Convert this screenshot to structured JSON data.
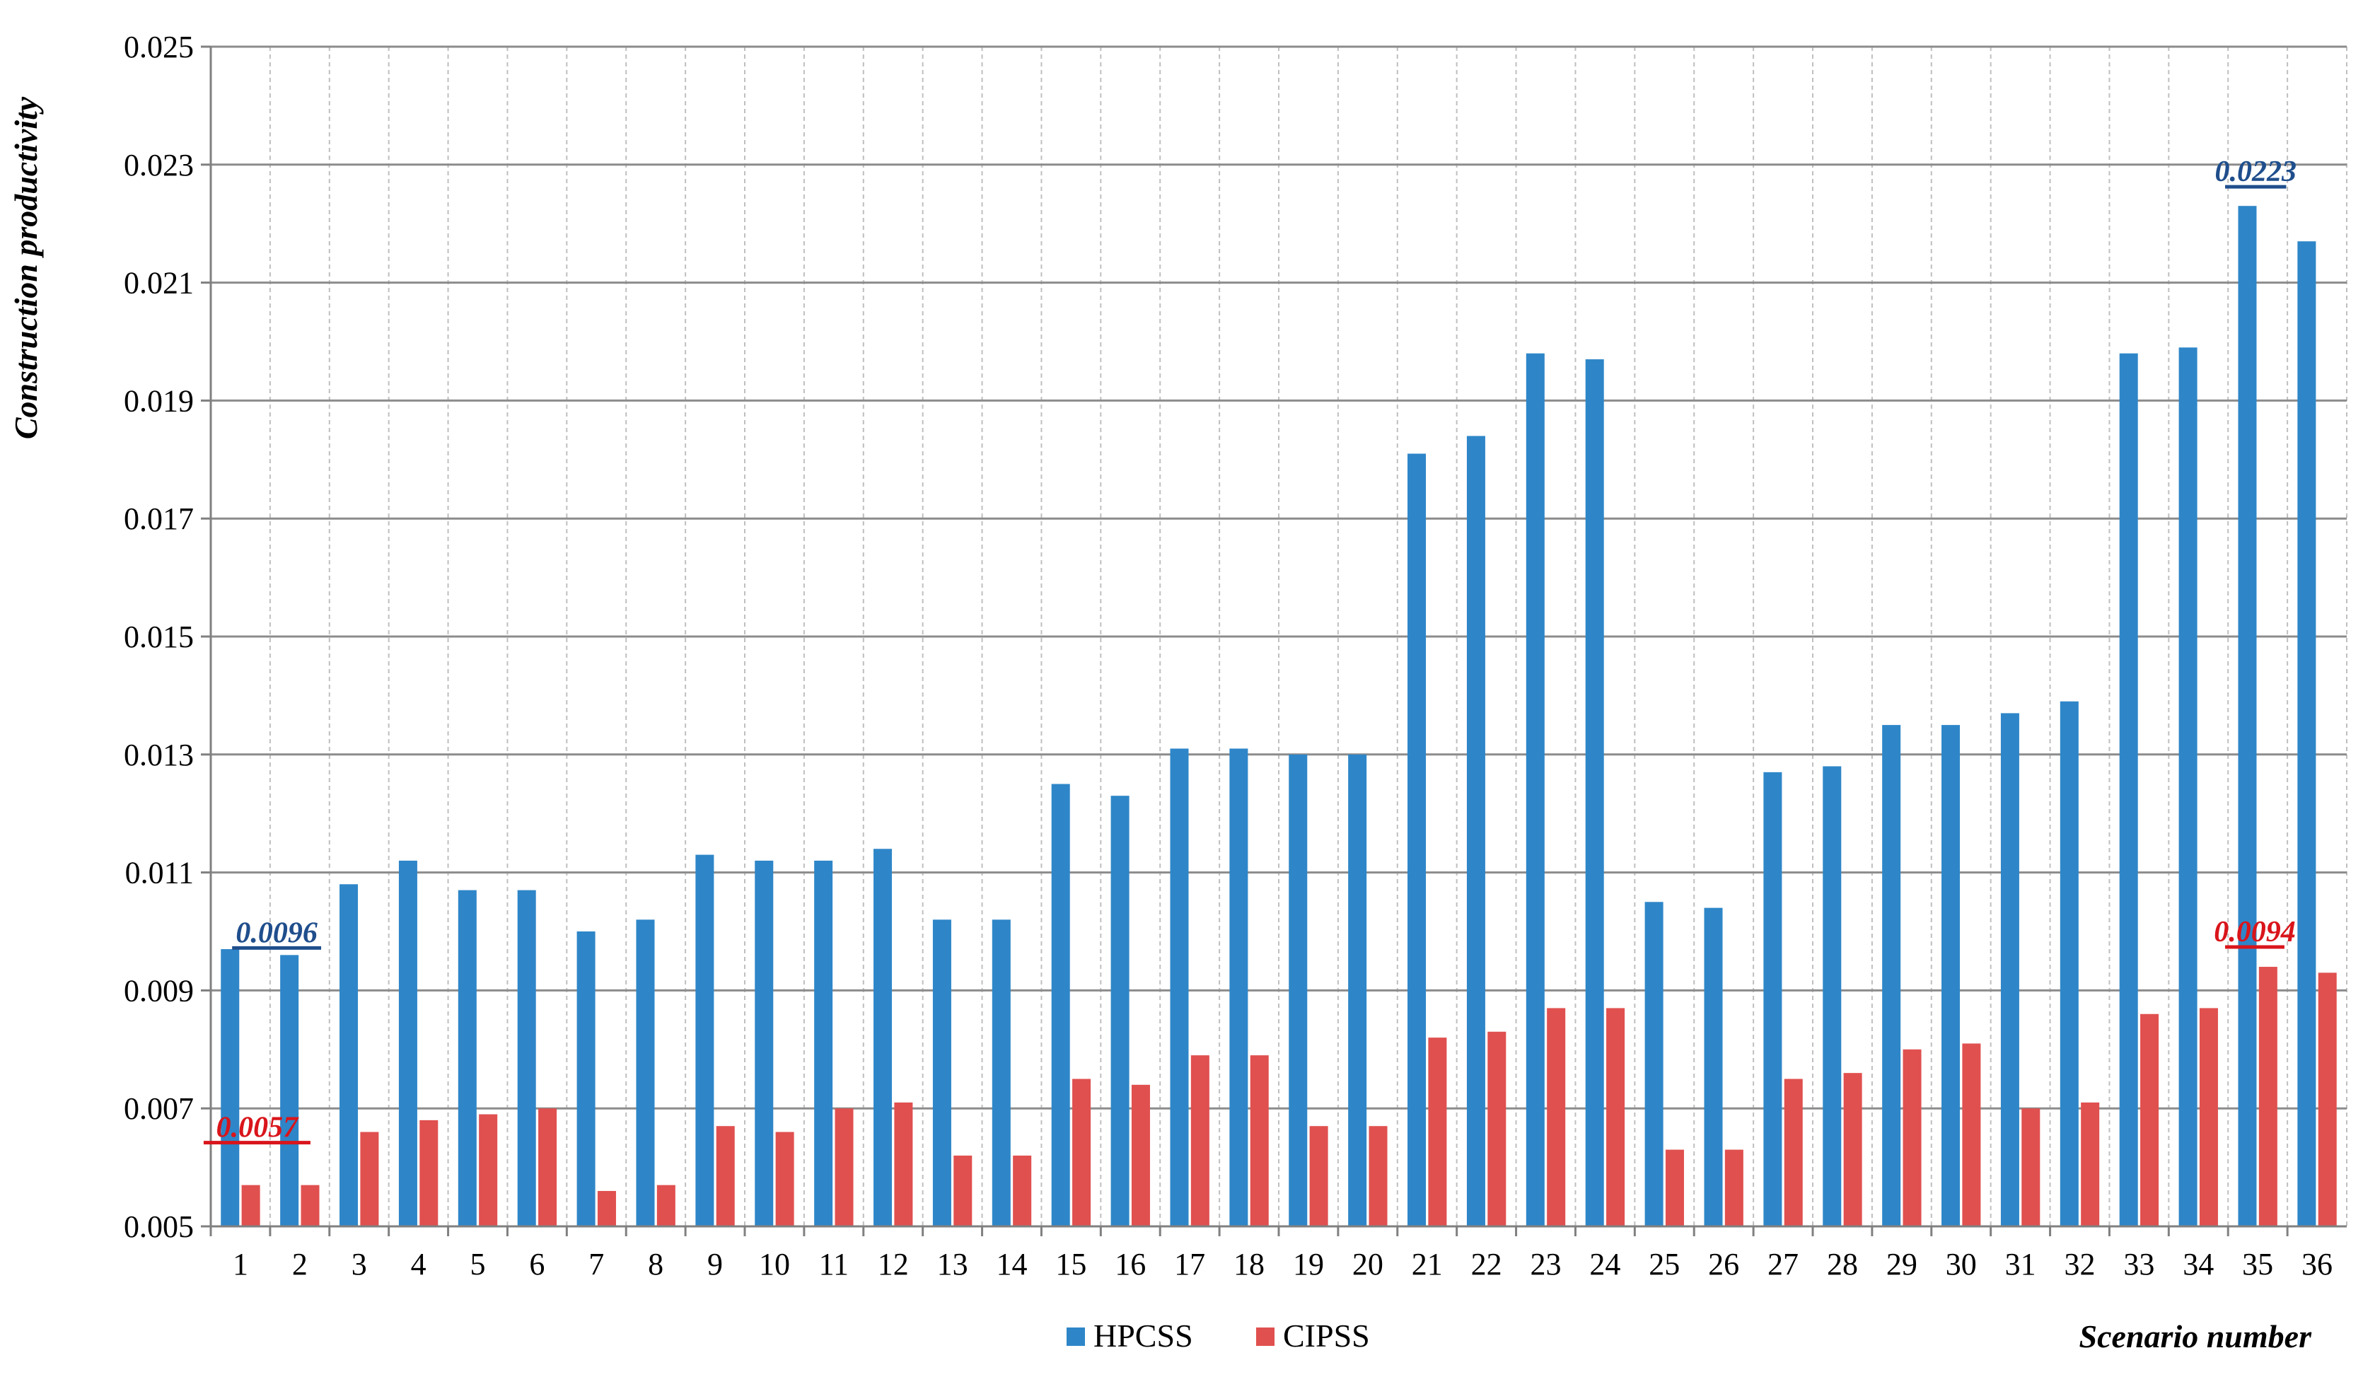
{
  "chart_data": {
    "type": "bar",
    "title": "",
    "xlabel": "Scenario number",
    "ylabel": "Construction productivity",
    "ylim": [
      0.005,
      0.025
    ],
    "yticks": [
      "0.005",
      "0.007",
      "0.009",
      "0.011",
      "0.013",
      "0.015",
      "0.017",
      "0.019",
      "0.021",
      "0.023",
      "0.025"
    ],
    "categories": [
      "1",
      "2",
      "3",
      "4",
      "5",
      "6",
      "7",
      "8",
      "9",
      "10",
      "11",
      "12",
      "13",
      "14",
      "15",
      "16",
      "17",
      "18",
      "19",
      "20",
      "21",
      "22",
      "23",
      "24",
      "25",
      "26",
      "27",
      "28",
      "29",
      "30",
      "31",
      "32",
      "33",
      "34",
      "35",
      "36"
    ],
    "series": [
      {
        "name": "HPCSS",
        "color": "#2E86C8",
        "values": [
          0.0097,
          0.0096,
          0.0108,
          0.0112,
          0.0107,
          0.0107,
          0.01,
          0.0102,
          0.0113,
          0.0112,
          0.0112,
          0.0114,
          0.0102,
          0.0102,
          0.0125,
          0.0123,
          0.0131,
          0.0131,
          0.013,
          0.013,
          0.0181,
          0.0184,
          0.0198,
          0.0197,
          0.0105,
          0.0104,
          0.0127,
          0.0128,
          0.0135,
          0.0135,
          0.0137,
          0.0139,
          0.0198,
          0.0199,
          0.0223,
          0.0217
        ]
      },
      {
        "name": "CIPSS",
        "color": "#E0504F",
        "values": [
          0.0057,
          0.0057,
          0.0066,
          0.0068,
          0.0069,
          0.007,
          0.0056,
          0.0057,
          0.0067,
          0.0066,
          0.007,
          0.0071,
          0.0062,
          0.0062,
          0.0075,
          0.0074,
          0.0079,
          0.0079,
          0.0067,
          0.0067,
          0.0082,
          0.0083,
          0.0087,
          0.0087,
          0.0063,
          0.0063,
          0.0075,
          0.0076,
          0.008,
          0.0081,
          0.007,
          0.0071,
          0.0086,
          0.0087,
          0.0094,
          0.0093
        ]
      }
    ],
    "annotations": [
      {
        "text": "0.0096",
        "series": "HPCSS",
        "categories": [
          "1",
          "2"
        ],
        "value": 0.0096,
        "color": "#1F4E8C"
      },
      {
        "text": "0.0057",
        "series": "CIPSS",
        "categories": [
          "1",
          "2"
        ],
        "value": 0.0057,
        "color": "#D9151B"
      },
      {
        "text": "0.0223",
        "series": "HPCSS",
        "categories": [
          "35"
        ],
        "value": 0.0223,
        "color": "#1F4E8C"
      },
      {
        "text": "0.0094",
        "series": "CIPSS",
        "categories": [
          "35",
          "36"
        ],
        "value": 0.0094,
        "color": "#D9151B"
      }
    ],
    "grid": {
      "horizontal": "solid",
      "vertical": "dashed"
    },
    "legend": "bottom-center"
  }
}
